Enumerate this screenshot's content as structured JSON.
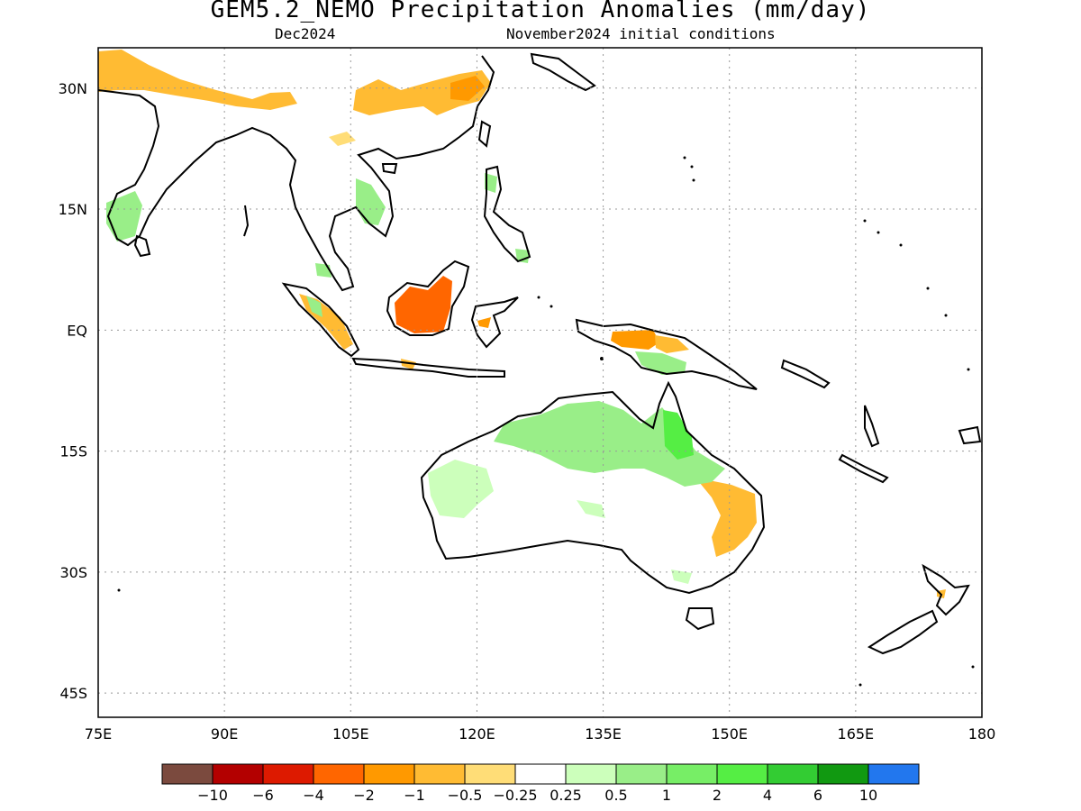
{
  "title": "GEM5.2_NEMO Precipitation Anomalies (mm/day)",
  "subtitle_left": "Dec2024",
  "subtitle_right": "November2024 initial conditions",
  "map": {
    "lon_range": [
      75,
      180
    ],
    "lat_range": [
      -48,
      35
    ],
    "lon_ticks": [
      {
        "value": 75,
        "label": "75E"
      },
      {
        "value": 90,
        "label": "90E"
      },
      {
        "value": 105,
        "label": "105E"
      },
      {
        "value": 120,
        "label": "120E"
      },
      {
        "value": 135,
        "label": "135E"
      },
      {
        "value": 150,
        "label": "150E"
      },
      {
        "value": 165,
        "label": "165E"
      },
      {
        "value": 180,
        "label": "180"
      }
    ],
    "lat_ticks": [
      {
        "value": 30,
        "label": "30N"
      },
      {
        "value": 15,
        "label": "15N"
      },
      {
        "value": 0,
        "label": "EQ"
      },
      {
        "value": -15,
        "label": "15S"
      },
      {
        "value": -30,
        "label": "30S"
      },
      {
        "value": -45,
        "label": "45S"
      }
    ],
    "grid": true
  },
  "colorbar": {
    "colors": [
      "#7b4a3e",
      "#b30000",
      "#dd1a00",
      "#ff6600",
      "#ff9900",
      "#ffbb33",
      "#ffdd77",
      "#ffffff",
      "#ccffbb",
      "#99ee88",
      "#77ee66",
      "#55ee44",
      "#33cc33",
      "#119911",
      "#2277ee"
    ],
    "labels": [
      "−10",
      "−6",
      "−4",
      "−2",
      "−1",
      "−0.5",
      "−0.25",
      "0.25",
      "0.5",
      "1",
      "2",
      "4",
      "6",
      "10"
    ]
  },
  "anomaly_regions": [
    {
      "name": "Borneo",
      "level": "-4 to -2",
      "color": "#ff6600"
    },
    {
      "name": "Himalaya",
      "level": "-1 to -0.5",
      "color": "#ffbb33"
    },
    {
      "name": "Southern China",
      "level": "-1 to -0.5",
      "color": "#ffbb33"
    },
    {
      "name": "New Guinea north",
      "level": "-2 to -1",
      "color": "#ff9900"
    },
    {
      "name": "Eastern Australia",
      "level": "-1 to -0.5",
      "color": "#ffbb33"
    },
    {
      "name": "Northern Australia",
      "level": "0.5 to 2",
      "color": "#77ee66"
    },
    {
      "name": "Queensland",
      "level": "2 to 4",
      "color": "#55ee44"
    },
    {
      "name": "Western Australia",
      "level": "0.25 to 0.5",
      "color": "#ccffbb"
    }
  ]
}
